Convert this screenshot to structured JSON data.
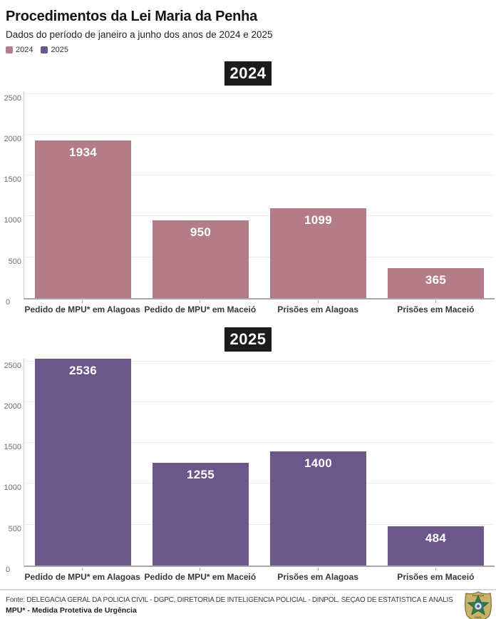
{
  "header": {
    "title": "Procedimentos da Lei Maria da Penha",
    "subtitle": "Dados do período de janeiro a junho dos anos de 2024 e 2025"
  },
  "legend": {
    "items": [
      {
        "label": "2024",
        "color": "#b37c88"
      },
      {
        "label": "2025",
        "color": "#6b578a"
      }
    ]
  },
  "chart_data": [
    {
      "type": "bar",
      "title": "2024",
      "categories": [
        "Pedido de MPU* em Alagoas",
        "Pedido de MPU* em Maceió",
        "Prisões em Alagoas",
        "Prisões em Maceió"
      ],
      "values": [
        1934,
        950,
        1099,
        365
      ],
      "bar_color": "#b37c88",
      "value_label_color": "#ffffff",
      "value_label_position": "inside-top",
      "yticks": [
        0,
        500,
        1000,
        1500,
        2000,
        2500
      ],
      "ylim": [
        0,
        2535
      ],
      "grid": true,
      "legend_position": "top-left"
    },
    {
      "type": "bar",
      "title": "2025",
      "categories": [
        "Pedido de MPU* em Alagoas",
        "Pedido de MPU* em Maceió",
        "Prisões em Alagoas",
        "Prisões em Maceió"
      ],
      "values": [
        2536,
        1255,
        1400,
        484
      ],
      "bar_color": "#6b578a",
      "value_label_color": "#ffffff",
      "value_label_position": "inside-top",
      "yticks": [
        0,
        500,
        1000,
        1500,
        2000,
        2500
      ],
      "ylim": [
        0,
        2535
      ],
      "grid": true,
      "legend_position": "top-left"
    }
  ],
  "footer": {
    "source_line": "Fonte: DELEGACIA GERAL DA POLÍCIA CIVIL - DGPC, DIRETORIA DE INTELIGÊNCIA POLICIAL - DINPOL, SEÇÃO DE ESTATÍSTICA E ANÁLISE CRIMINAL - SEAC •",
    "note_line": "MPU* - Medida Protetiva de Urgência",
    "logo_name": "policia-civil-badge",
    "badge_colors": {
      "shield": "#c9b36a",
      "outline": "#8a7a3e",
      "star": "#2e7d4f",
      "center": "#e9e2c8",
      "ring": "#3a6ea5"
    }
  }
}
